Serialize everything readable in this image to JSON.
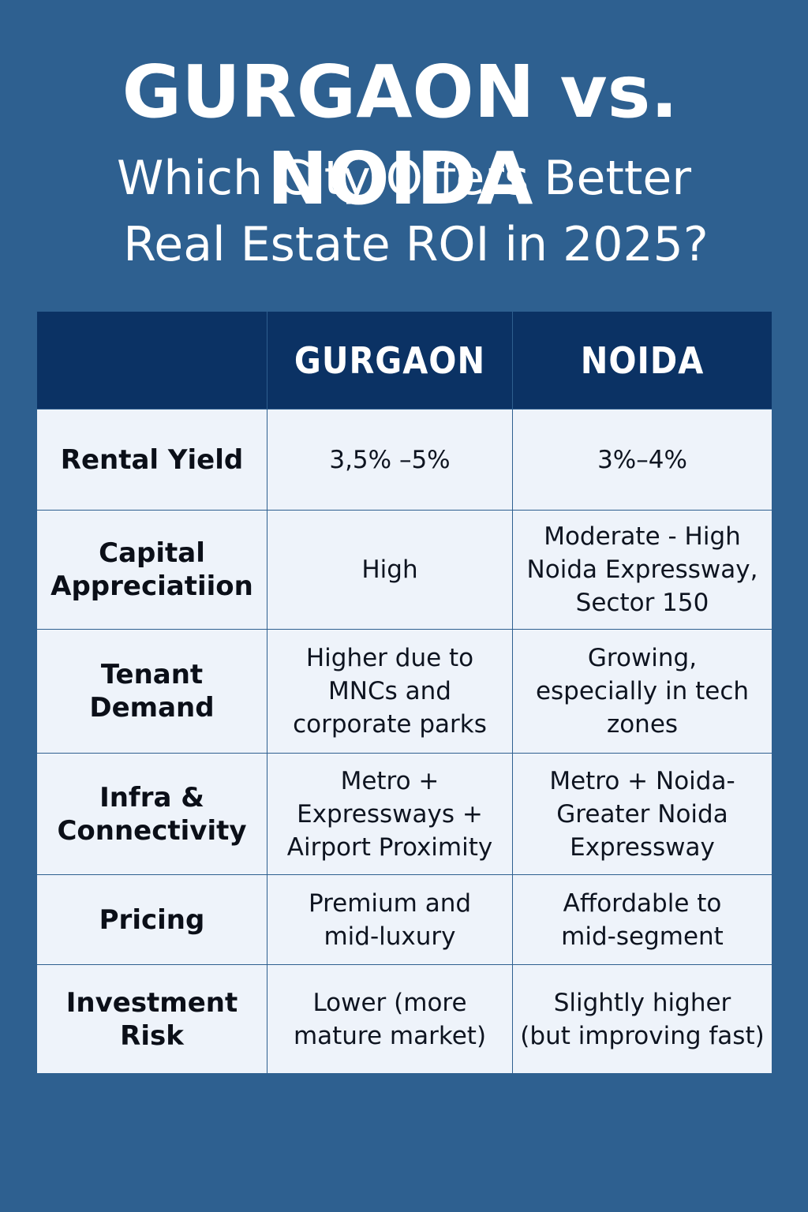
{
  "header": {
    "title": "GURGAON vs. NOIDA",
    "subtitle_line1": "Which City Offers Better",
    "subtitle_line2": "Real Estate ROI in 2025?"
  },
  "table": {
    "columns": [
      "",
      "GURGAON",
      "NOIDA"
    ],
    "rows": [
      {
        "label": [
          "Rental Yield"
        ],
        "gurgaon": [
          "3,5% –5%"
        ],
        "noida": [
          "3%–4%"
        ]
      },
      {
        "label": [
          "Capital",
          "Appreciatiion"
        ],
        "gurgaon": [
          "High"
        ],
        "noida": [
          "Moderate - High",
          "Noida Expressway,",
          "Sector 150"
        ]
      },
      {
        "label": [
          "Tenant",
          "Demand"
        ],
        "gurgaon": [
          "Higher due to",
          "MNCs and",
          "corporate parks"
        ],
        "noida": [
          "Growing,",
          "especially in tech",
          "zones"
        ]
      },
      {
        "label": [
          "Infra &",
          "Connectivity"
        ],
        "gurgaon": [
          "Metro +",
          "Expressways +",
          "Airport Proximity"
        ],
        "noida": [
          "Metro + Noida-",
          "Greater Noida",
          "Expressway"
        ]
      },
      {
        "label": [
          "Pricing"
        ],
        "gurgaon": [
          "Premium and",
          "mid-luxury"
        ],
        "noida": [
          "Affordable to",
          "mid-segment"
        ]
      },
      {
        "label": [
          "Investment",
          "Risk"
        ],
        "gurgaon": [
          "Lower (more",
          "mature market)"
        ],
        "noida": [
          "Slightly higher",
          "(but improving fast)"
        ]
      }
    ]
  },
  "colors": {
    "background": "#2e6090",
    "header_row": "#0b3264",
    "cell": "#eef3fa",
    "title_text": "#ffffff"
  }
}
